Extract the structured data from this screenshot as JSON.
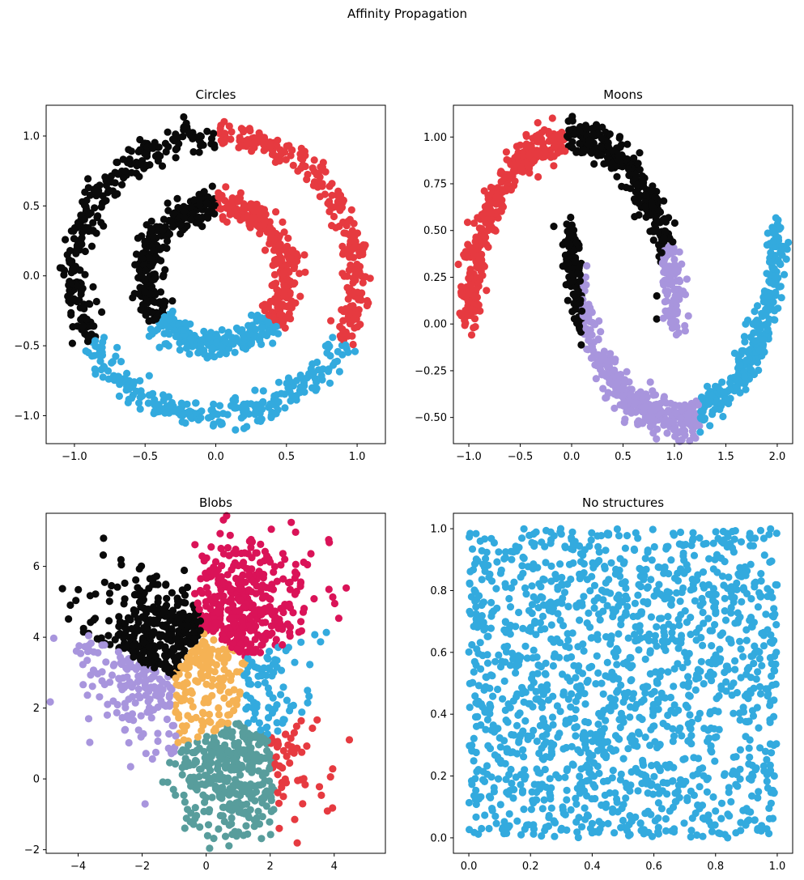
{
  "figure_title": "Affinity Propagation",
  "colors": {
    "black": "#0a0a0a",
    "red": "#e63a40",
    "blue": "#33aade",
    "lavender": "#a895dd",
    "crimson": "#da1358",
    "orange": "#f5b254",
    "teal": "#589d9c"
  },
  "chart_data": [
    {
      "type": "scatter",
      "title": "Circles",
      "xlim": [
        -1.2,
        1.2
      ],
      "ylim": [
        -1.2,
        1.22
      ],
      "xticks": [
        -1.0,
        -0.5,
        0.0,
        0.5,
        1.0
      ],
      "xtick_labels": [
        "−1.0",
        "−0.5",
        "0.0",
        "0.5",
        "1.0"
      ],
      "yticks": [
        -1.0,
        -0.5,
        0.0,
        0.5,
        1.0
      ],
      "ytick_labels": [
        "−1.0",
        "−0.5",
        "0.0",
        "0.5",
        "1.0"
      ],
      "generator": "circles",
      "n_points": 1500,
      "clusters": [
        {
          "name": "outer ring upper-left",
          "color": "black"
        },
        {
          "name": "outer ring upper-right",
          "color": "red"
        },
        {
          "name": "outer ring bottom",
          "color": "blue"
        },
        {
          "name": "inner ring left",
          "color": "black"
        },
        {
          "name": "inner ring right",
          "color": "red"
        },
        {
          "name": "inner ring bottom",
          "color": "blue"
        }
      ]
    },
    {
      "type": "scatter",
      "title": "Moons",
      "xlim": [
        -1.15,
        2.15
      ],
      "ylim": [
        -0.64,
        1.17
      ],
      "xticks": [
        -1.0,
        -0.5,
        0.0,
        0.5,
        1.0,
        1.5,
        2.0
      ],
      "xtick_labels": [
        "−1.0",
        "−0.5",
        "0.0",
        "0.5",
        "1.0",
        "1.5",
        "2.0"
      ],
      "yticks": [
        -0.5,
        -0.25,
        0.0,
        0.25,
        0.5,
        0.75,
        1.0
      ],
      "ytick_labels": [
        "−0.50",
        "−0.25",
        "0.00",
        "0.25",
        "0.50",
        "0.75",
        "1.00"
      ],
      "generator": "moons",
      "n_points": 1500,
      "clusters": [
        {
          "name": "upper moon left",
          "color": "red"
        },
        {
          "name": "upper moon right",
          "color": "black"
        },
        {
          "name": "upper moon tip",
          "color": "lavender"
        },
        {
          "name": "lower moon left",
          "color": "black"
        },
        {
          "name": "lower moon middle",
          "color": "lavender"
        },
        {
          "name": "lower moon right",
          "color": "blue"
        }
      ]
    },
    {
      "type": "scatter",
      "title": "Blobs",
      "xlim": [
        -5.0,
        5.6
      ],
      "ylim": [
        -2.1,
        7.5
      ],
      "xticks": [
        -4,
        -2,
        0,
        2,
        4
      ],
      "xtick_labels": [
        "−4",
        "−2",
        "0",
        "2",
        "4"
      ],
      "yticks": [
        -2,
        0,
        2,
        4,
        6
      ],
      "ytick_labels": [
        "−2",
        "0",
        "2",
        "4",
        "6"
      ],
      "generator": "blobs",
      "n_points": 1500,
      "clusters": [
        {
          "center": [
            1.3,
            4.7
          ],
          "color": "crimson"
        },
        {
          "center": [
            -1.6,
            4.0
          ],
          "color": "black"
        },
        {
          "center": [
            -2.3,
            2.5
          ],
          "color": "lavender"
        },
        {
          "center": [
            0.2,
            2.7
          ],
          "color": "orange"
        },
        {
          "center": [
            2.0,
            2.4
          ],
          "color": "blue"
        },
        {
          "center": [
            1.2,
            0.3
          ],
          "color": "teal"
        },
        {
          "center": [
            2.9,
            0.5
          ],
          "color": "red"
        }
      ]
    },
    {
      "type": "scatter",
      "title": "No structures",
      "xlim": [
        -0.05,
        1.05
      ],
      "ylim": [
        -0.05,
        1.05
      ],
      "xticks": [
        0.0,
        0.2,
        0.4,
        0.6,
        0.8,
        1.0
      ],
      "xtick_labels": [
        "0.0",
        "0.2",
        "0.4",
        "0.6",
        "0.8",
        "1.0"
      ],
      "yticks": [
        0.0,
        0.2,
        0.4,
        0.6,
        0.8,
        1.0
      ],
      "ytick_labels": [
        "0.0",
        "0.2",
        "0.4",
        "0.6",
        "0.8",
        "1.0"
      ],
      "generator": "uniform",
      "n_points": 1500,
      "clusters": [
        {
          "name": "all points",
          "color": "blue"
        }
      ]
    }
  ]
}
